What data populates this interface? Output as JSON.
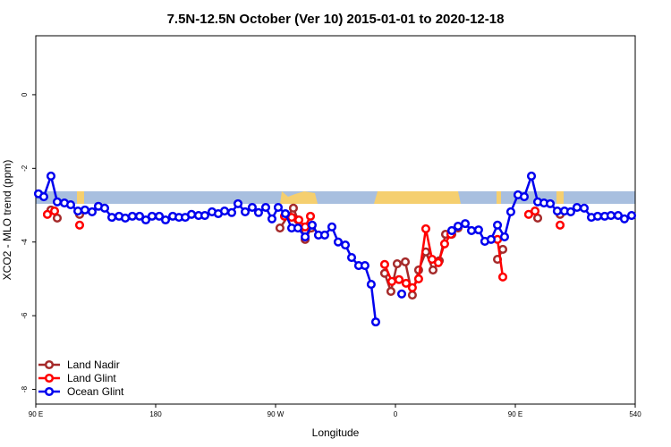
{
  "chart_data": {
    "type": "line",
    "title": "7.5N-12.5N October (Ver 10)   2015-01-01 to 2020-12-18",
    "x_label": "Longitude",
    "y_label": "XCO2 - MLO trend (ppm)",
    "xlim": [
      90,
      540
    ],
    "xticks": [
      {
        "value": 90,
        "label": "90 E"
      },
      180,
      {
        "value": 270,
        "label": "90 W"
      },
      {
        "value": 360,
        "label": "0"
      },
      {
        "value": 450,
        "label": "90 E"
      },
      540
    ],
    "ylim": [
      -8.4,
      1.6
    ],
    "yticks": [
      0,
      -2,
      -4,
      -6,
      -8
    ],
    "legend": "bottomleft",
    "series": [
      {
        "name": "Land Nadir",
        "color": "#a52a2a",
        "x": [
          101.4,
          106.1,
          115,
          122.9,
          200,
          273.3,
          283.4,
          286.8,
          292.2,
          296.9,
          320,
          351.9,
          356.6,
          361.3,
          367.4,
          372.7,
          377.4,
          382.8,
          388.2,
          392.9,
          397.6,
          402.3,
          407.0,
          420,
          436.6,
          440.6,
          450,
          466.8,
          475,
          483.6
        ],
        "values": [
          -3.13,
          -3.35,
          null,
          -3.25,
          null,
          -3.62,
          -3.08,
          -3.4,
          -3.93,
          -3.62,
          null,
          -4.85,
          -5.34,
          -4.59,
          -4.54,
          -5.44,
          -4.76,
          -4.27,
          -4.76,
          -4.51,
          -3.79,
          -3.79,
          -3.62,
          null,
          -4.47,
          -4.2,
          null,
          -3.35,
          null,
          -3.25
        ]
      },
      {
        "name": "Land Glint",
        "color": "#ff0000",
        "x": [
          98.7,
          104.1,
          110,
          122.9,
          200,
          276.7,
          282.1,
          287.5,
          292.2,
          296.2,
          320,
          351.9,
          357.3,
          362.7,
          368.0,
          372.7,
          377.4,
          382.8,
          387.5,
          392.2,
          396.9,
          401.6,
          420,
          436.6,
          440.6,
          450,
          460.0,
          464.8,
          475,
          483.6
        ],
        "values": [
          -3.25,
          -3.16,
          null,
          -3.54,
          null,
          -3.3,
          -3.33,
          -3.4,
          -3.59,
          -3.3,
          null,
          -4.61,
          -5.07,
          -5.02,
          -5.12,
          -5.24,
          -5.0,
          -3.64,
          -4.47,
          -4.56,
          -4.05,
          -3.79,
          null,
          -3.93,
          -4.95,
          null,
          -3.25,
          -3.16,
          null,
          -3.54
        ]
      },
      {
        "name": "Ocean Glint",
        "color": "#0000ee",
        "x": [
          92.0,
          96.0,
          101.4,
          106.1,
          111.5,
          116.2,
          121.6,
          126.9,
          132.3,
          137.0,
          141.7,
          147.1,
          152.5,
          157.2,
          162.5,
          167.9,
          172.6,
          177.3,
          182.7,
          187.4,
          192.8,
          197.5,
          202.2,
          206.9,
          212.2,
          216.9,
          222.3,
          227.0,
          231.7,
          237.1,
          241.8,
          247.2,
          252.5,
          257.2,
          262.6,
          267.3,
          272.0,
          277.4,
          282.1,
          286.8,
          292.2,
          297.5,
          302.2,
          306.9,
          312.3,
          317.0,
          322.4,
          327.1,
          332.4,
          337.1,
          341.8,
          345.2,
          355,
          364.7,
          385,
          402.3,
          407.0,
          412.4,
          417.1,
          422.4,
          427.1,
          431.8,
          436.6,
          441.9,
          446.6,
          452.0,
          456.7,
          462.1,
          466.8,
          471.5,
          476.2,
          481.5,
          486.9,
          491.6,
          496.3,
          501.7,
          507.1,
          511.8,
          517.1,
          521.8,
          527.2,
          531.9,
          537.3
        ],
        "values": [
          -2.69,
          -2.77,
          -2.21,
          -2.91,
          -2.94,
          -2.99,
          -3.16,
          -3.13,
          -3.18,
          -3.03,
          -3.08,
          -3.33,
          -3.3,
          -3.35,
          -3.3,
          -3.3,
          -3.4,
          -3.3,
          -3.3,
          -3.4,
          -3.3,
          -3.33,
          -3.33,
          -3.25,
          -3.28,
          -3.28,
          -3.18,
          -3.23,
          -3.16,
          -3.2,
          -2.96,
          -3.18,
          -3.06,
          -3.2,
          -3.06,
          -3.37,
          -3.06,
          -3.23,
          -3.62,
          -3.62,
          -3.86,
          -3.54,
          -3.81,
          -3.81,
          -3.59,
          -4.0,
          -4.08,
          -4.42,
          -4.64,
          -4.64,
          -5.15,
          -6.17,
          null,
          -5.41,
          null,
          -3.69,
          -3.57,
          -3.5,
          -3.69,
          -3.67,
          -3.98,
          -3.93,
          -3.54,
          -3.86,
          -3.18,
          -2.72,
          -2.77,
          -2.21,
          -2.91,
          -2.94,
          -2.96,
          -3.16,
          -3.16,
          -3.18,
          -3.06,
          -3.08,
          -3.33,
          -3.3,
          -3.3,
          -3.28,
          -3.28,
          -3.37,
          -3.28
        ]
      }
    ]
  }
}
